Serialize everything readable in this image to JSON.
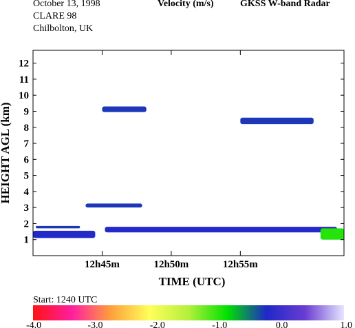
{
  "header": {
    "date": "October  13, 1998",
    "campaign": "CLARE 98",
    "location": "Chilbolton, UK",
    "quantity": "Velocity (m/s)",
    "instrument": "GKSS  W-band Radar"
  },
  "colorbar": {
    "start_label": "Start: 1240 UTC",
    "ticks": [
      "-4.0",
      "-3.0",
      "-2.0",
      "-1.0",
      "0.0",
      "1.0"
    ],
    "range": [
      -4.0,
      1.0
    ],
    "colors": [
      "#ff1414",
      "#ff1ea0",
      "#ffa03c",
      "#ffff5a",
      "#b4f03c",
      "#00e100",
      "#1e28c8",
      "#6a3cd2",
      "#e6e6ff"
    ]
  },
  "chart_data": {
    "type": "heatmap",
    "title": "Velocity (m/s)",
    "xlabel": "TIME (UTC)",
    "ylabel": "HEIGHT AGL (km)",
    "x_unit": "minutes after 12h40m",
    "xlim": [
      0,
      22.5
    ],
    "ylim": [
      0,
      12.8
    ],
    "xticks": [
      {
        "value": 5,
        "label": "12h45m"
      },
      {
        "value": 10,
        "label": "12h50m"
      },
      {
        "value": 15,
        "label": "12h55m"
      }
    ],
    "yticks": [
      1,
      2,
      3,
      4,
      5,
      6,
      7,
      8,
      9,
      10,
      11,
      12
    ],
    "zlim": [
      -4.0,
      1.0
    ],
    "echo_layers": [
      {
        "t_start": 5.0,
        "t_end": 8.2,
        "h_bottom": 8.95,
        "h_top": 9.3,
        "velocity": -0.3
      },
      {
        "t_start": 3.8,
        "t_end": 7.9,
        "h_bottom": 3.0,
        "h_top": 3.25,
        "velocity": -0.3
      },
      {
        "t_start": 15.0,
        "t_end": 20.3,
        "h_bottom": 8.2,
        "h_top": 8.6,
        "velocity": -0.3
      },
      {
        "t_start": 0.0,
        "t_end": 4.5,
        "h_bottom": 1.1,
        "h_top": 1.55,
        "velocity": -0.2
      },
      {
        "t_start": 0.2,
        "t_end": 3.4,
        "h_bottom": 1.7,
        "h_top": 1.85,
        "velocity": -0.3
      },
      {
        "t_start": 5.2,
        "t_end": 22.0,
        "h_bottom": 1.45,
        "h_top": 1.8,
        "velocity": -0.2
      },
      {
        "t_start": 20.8,
        "t_end": 22.5,
        "h_bottom": 1.0,
        "h_top": 1.7,
        "velocity": -1.0
      }
    ]
  }
}
